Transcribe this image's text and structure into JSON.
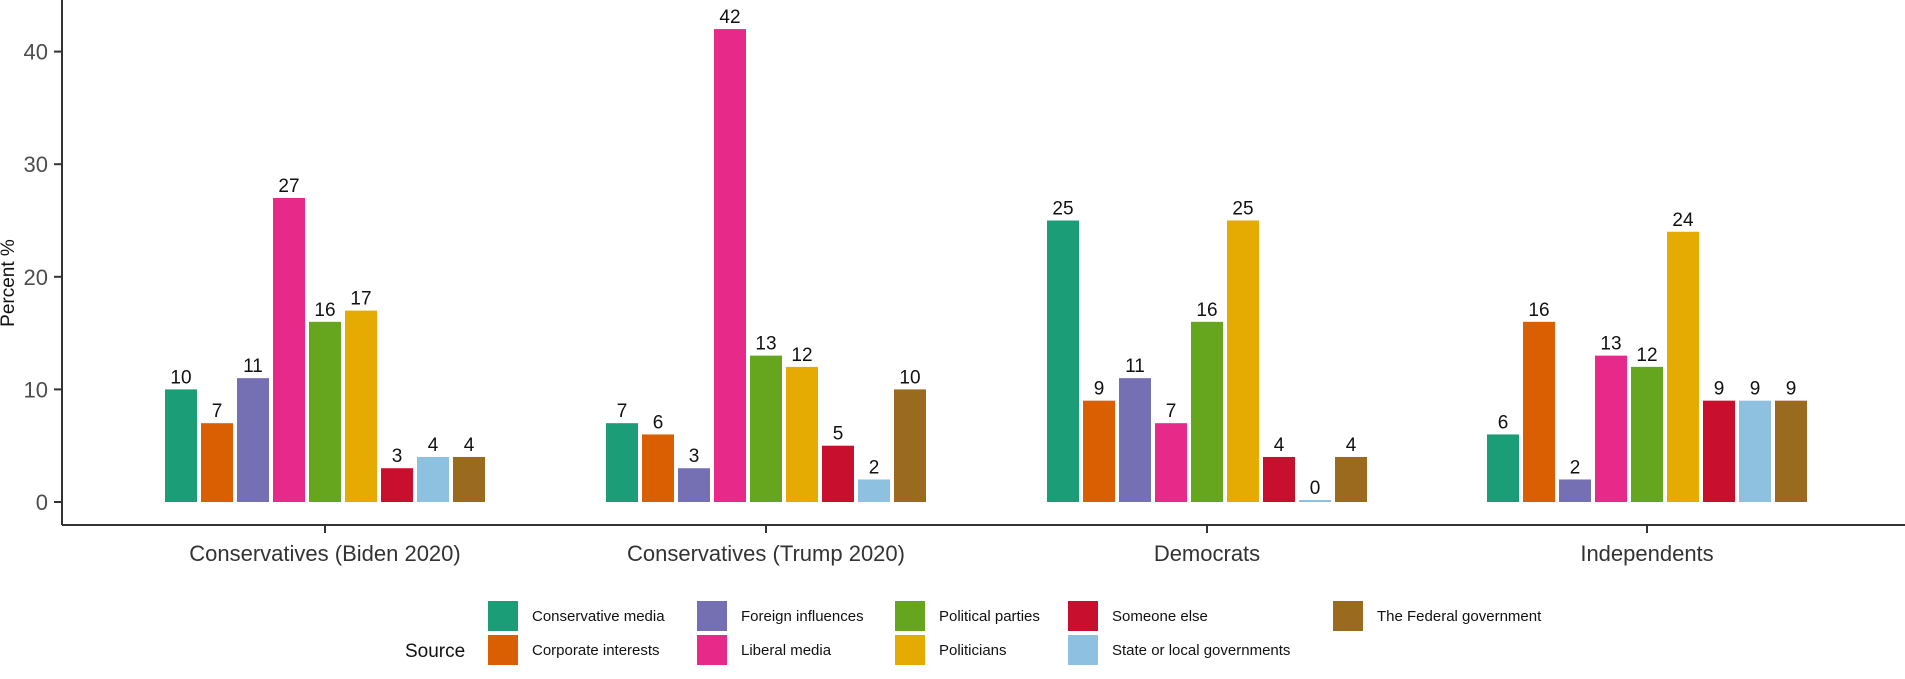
{
  "chart_data": {
    "type": "bar",
    "ylabel": "Percent %",
    "xlabel": "",
    "ylim": [
      0,
      42
    ],
    "yticks": [
      0,
      10,
      20,
      30,
      40
    ],
    "grid": false,
    "legend_title": "Source",
    "legend_position": "bottom",
    "categories": [
      "Conservatives (Biden 2020)",
      "Conservatives (Trump 2020)",
      "Democrats",
      "Independents"
    ],
    "series": [
      {
        "name": "Conservative media",
        "color": "#1b9e77",
        "values": [
          10,
          7,
          25,
          6
        ]
      },
      {
        "name": "Corporate interests",
        "color": "#d95f02",
        "values": [
          7,
          6,
          9,
          16
        ]
      },
      {
        "name": "Foreign influences",
        "color": "#7570b3",
        "values": [
          11,
          3,
          11,
          2
        ]
      },
      {
        "name": "Liberal media",
        "color": "#e7298a",
        "values": [
          27,
          42,
          7,
          13
        ]
      },
      {
        "name": "Political parties",
        "color": "#66a61e",
        "values": [
          16,
          13,
          16,
          12
        ]
      },
      {
        "name": "Politicians",
        "color": "#e6ab02",
        "values": [
          17,
          12,
          25,
          24
        ]
      },
      {
        "name": "Someone else",
        "color": "#c8102e",
        "values": [
          3,
          5,
          4,
          9
        ]
      },
      {
        "name": "State or local governments",
        "color": "#8ec1df",
        "values": [
          4,
          2,
          0,
          9
        ]
      },
      {
        "name": "The Federal government",
        "color": "#9a6a1f",
        "values": [
          4,
          10,
          4,
          9
        ]
      }
    ]
  }
}
